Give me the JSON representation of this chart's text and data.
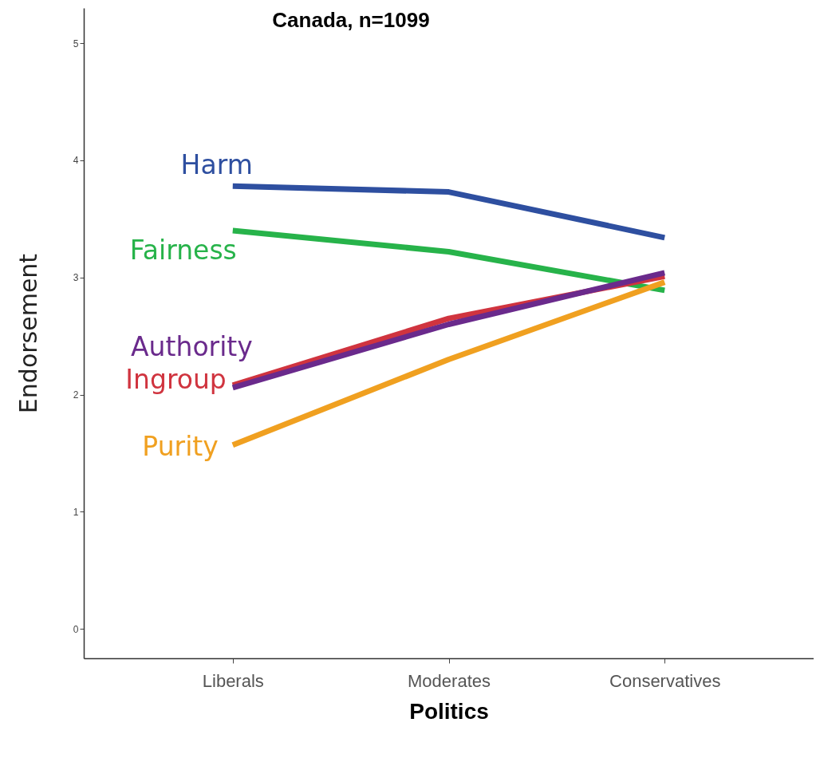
{
  "chart_data": {
    "type": "line",
    "title": "Canada, n=1099",
    "xlabel": "Politics",
    "ylabel": "Endorsement",
    "categories": [
      "Liberals",
      "Moderates",
      "Conservatives"
    ],
    "series": [
      {
        "name": "Harm",
        "color": "#2e4fa0",
        "values": [
          3.78,
          3.73,
          3.34
        ]
      },
      {
        "name": "Fairness",
        "color": "#27b34a",
        "values": [
          3.4,
          3.22,
          2.89
        ]
      },
      {
        "name": "Ingroup",
        "color": "#d0343f",
        "values": [
          2.08,
          2.65,
          3.01
        ]
      },
      {
        "name": "Authority",
        "color": "#6a2a8c",
        "values": [
          2.06,
          2.6,
          3.04
        ]
      },
      {
        "name": "Purity",
        "color": "#f0a020",
        "values": [
          1.57,
          2.3,
          2.96
        ]
      }
    ],
    "ylim": [
      -0.25,
      5.3
    ],
    "yticks": [
      0,
      1,
      2,
      3,
      4,
      5
    ],
    "grid": false,
    "legend": false,
    "marker": "none",
    "line_style": "solid"
  }
}
